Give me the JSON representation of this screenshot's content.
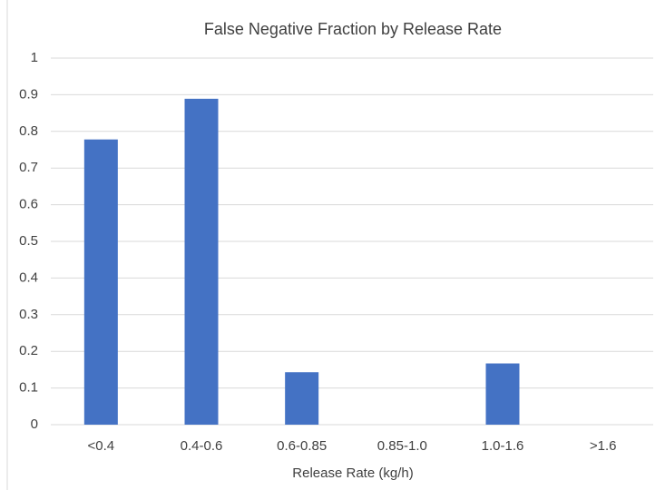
{
  "chart_data": {
    "type": "bar",
    "title": "False Negative Fraction by Release Rate",
    "x_label": "Release Rate (kg/h)",
    "categories": [
      "<0.4",
      "0.4-0.6",
      "0.6-0.85",
      "0.85-1.0",
      "1.0-1.6",
      ">1.6"
    ],
    "values": [
      0.778,
      0.889,
      0.143,
      0,
      0.167,
      0
    ],
    "color": "#4472c4",
    "ylim": [
      0,
      1
    ],
    "yticks": [
      0,
      0.1,
      0.2,
      0.3,
      0.4,
      0.5,
      0.6,
      0.7,
      0.8,
      0.9,
      1
    ],
    "grid": true
  }
}
